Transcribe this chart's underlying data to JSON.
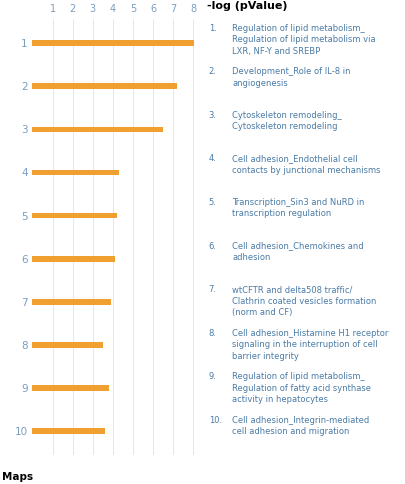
{
  "bar_values": [
    8.05,
    7.2,
    6.5,
    4.3,
    4.2,
    4.1,
    3.9,
    3.5,
    3.8,
    3.6
  ],
  "bar_color": "#F0A030",
  "bar_height": 0.13,
  "y_labels": [
    "1",
    "2",
    "3",
    "4",
    "5",
    "6",
    "7",
    "8",
    "9",
    "10"
  ],
  "x_ticks": [
    1,
    2,
    3,
    4,
    5,
    6,
    7,
    8
  ],
  "xlim": [
    0,
    8.5
  ],
  "ylim": [
    0.45,
    10.55
  ],
  "y_label_bottom": "Maps",
  "grid_color": "#DDDDDD",
  "axis_color": "#7A9DBF",
  "background_color": "#FFFFFF",
  "x_label": "-log (pValue)",
  "legend_items": [
    [
      "1.",
      "Regulation of lipid metabolism_\nRegulation of lipid metabolism via\nLXR, NF-Y and SREBP"
    ],
    [
      "2.",
      "Development_Role of IL-8 in\nangiogenesis"
    ],
    [
      "3.",
      "Cytoskeleton remodeling_\nCytoskeleton remodeling"
    ],
    [
      "4.",
      "Cell adhesion_Endothelial cell\ncontacts by junctional mechanisms"
    ],
    [
      "5.",
      "Transcription_Sin3 and NuRD in\ntranscription regulation"
    ],
    [
      "6.",
      "Cell adhesion_Chemokines and\nadhesion"
    ],
    [
      "7.",
      "wtCFTR and delta508 traffic/\nClathrin coated vesicles formation\n(norm and CF)"
    ],
    [
      "8.",
      "Cell adhesion_Histamine H1 receptor\nsignaling in the interruption of cell\nbarrier integrity"
    ],
    [
      "9.",
      "Regulation of lipid metabolism_\nRegulation of fatty acid synthase\nactivity in hepatocytes"
    ],
    [
      "10.",
      "Cell adhesion_Integrin-mediated\ncell adhesion and migration"
    ]
  ],
  "legend_fontsize": 6.0,
  "tick_fontsize": 7.0,
  "y_tick_fontsize": 7.5,
  "maps_fontsize": 7.5,
  "xlabel_fontsize": 8.0,
  "text_color": "#4A7BA6",
  "label_color": "#7A9DBF"
}
